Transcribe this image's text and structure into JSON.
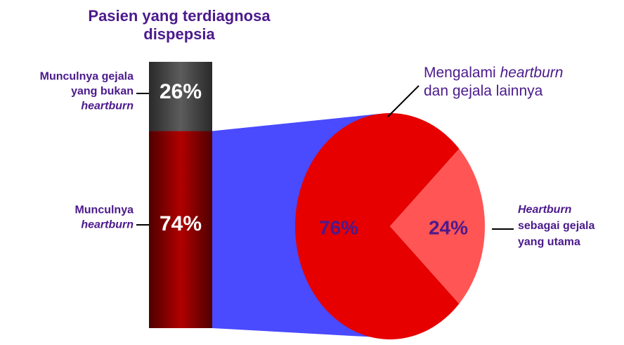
{
  "chart_data": {
    "type": "bar-of-pie",
    "title": [
      "Pasien yang terdiagnosa",
      "dispepsia"
    ],
    "bar": {
      "values": [
        26,
        74
      ],
      "value_labels": [
        "26%",
        "74%"
      ],
      "colors": [
        "#5c5c5c",
        "#b00000"
      ],
      "labels": [
        [
          [
            {
              "text": "Munculnya gejala",
              "italic": false
            }
          ],
          [
            {
              "text": "yang bukan",
              "italic": false
            }
          ],
          [
            {
              "text": "heartburn",
              "italic": true
            }
          ]
        ],
        [
          [
            {
              "text": "Munculnya",
              "italic": false
            }
          ],
          [
            {
              "text": "heartburn",
              "italic": true
            }
          ]
        ]
      ]
    },
    "pie": {
      "values": [
        76,
        24
      ],
      "value_labels": [
        "76%",
        "24%"
      ],
      "colors": [
        "#e60000",
        "#ff5555"
      ],
      "labels": [
        [
          [
            {
              "text": "Mengalami ",
              "italic": false
            },
            {
              "text": "heartburn",
              "italic": true
            }
          ],
          [
            {
              "text": "dan gejala lainnya",
              "italic": false
            }
          ]
        ],
        [
          [
            {
              "text": "Heartburn",
              "italic": true
            }
          ],
          [
            {
              "text": "sebagai gejala",
              "italic": false
            }
          ],
          [
            {
              "text": "yang utama",
              "italic": false
            }
          ]
        ]
      ]
    }
  }
}
